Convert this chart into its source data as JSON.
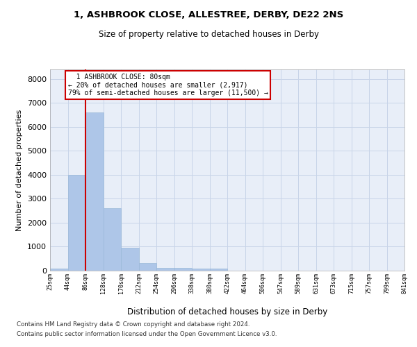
{
  "title": "1, ASHBROOK CLOSE, ALLESTREE, DERBY, DE22 2NS",
  "subtitle": "Size of property relative to detached houses in Derby",
  "xlabel": "Distribution of detached houses by size in Derby",
  "ylabel": "Number of detached properties",
  "footer_line1": "Contains HM Land Registry data © Crown copyright and database right 2024.",
  "footer_line2": "Contains public sector information licensed under the Open Government Licence v3.0.",
  "annotation_line1": "  1 ASHBROOK CLOSE: 80sqm  ",
  "annotation_line2": "← 20% of detached houses are smaller (2,917)",
  "annotation_line3": "79% of semi-detached houses are larger (11,500) →",
  "bin_labels": [
    "25sqm",
    "44sqm",
    "86sqm",
    "128sqm",
    "170sqm",
    "212sqm",
    "254sqm",
    "296sqm",
    "338sqm",
    "380sqm",
    "422sqm",
    "464sqm",
    "506sqm",
    "547sqm",
    "589sqm",
    "631sqm",
    "673sqm",
    "715sqm",
    "757sqm",
    "799sqm",
    "841sqm"
  ],
  "bar_values": [
    75,
    4000,
    6600,
    2600,
    950,
    330,
    120,
    120,
    75,
    75,
    0,
    0,
    0,
    0,
    0,
    0,
    0,
    0,
    0,
    0
  ],
  "bar_color": "#aec6e8",
  "bar_edge_color": "#9ab8d8",
  "grid_color": "#c8d4e8",
  "background_color": "#e8eef8",
  "red_line_color": "#cc0000",
  "annotation_box_edge_color": "#cc0000",
  "ylim": [
    0,
    8400
  ],
  "yticks": [
    0,
    1000,
    2000,
    3000,
    4000,
    5000,
    6000,
    7000,
    8000
  ]
}
